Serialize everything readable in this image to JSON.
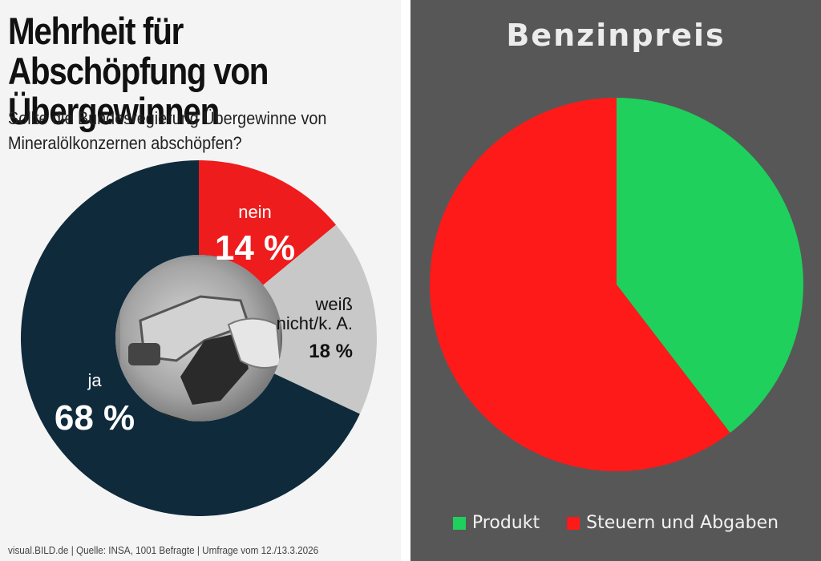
{
  "left": {
    "title": "Mehrheit für Abschöpfung von Übergewinnen",
    "subtitle": "Sollte die Bundesregierung Übergewinne von Mineralölkonzernen abschöpfen?",
    "footer": "visual.BILD.de | Quelle: INSA, 1001 Befragte | Umfrage vom 12./13.3.2026"
  },
  "right": {
    "title": "Benzinpreis"
  },
  "chart_data": [
    {
      "type": "pie",
      "variant": "donut",
      "title": "Mehrheit für Abschöpfung von Übergewinnen",
      "subtitle": "Sollte die Bundesregierung Übergewinne von Mineralölkonzernen abschöpfen?",
      "categories": [
        "nein",
        "weiß nicht/k. A.",
        "ja"
      ],
      "values": [
        14,
        18,
        68
      ],
      "labels": [
        "14 %",
        "18 %",
        "68 %"
      ],
      "colors": [
        "#ee1c1c",
        "#c8c8c8",
        "#0f2a3b"
      ],
      "center_image": "fuel-pump-nozzle"
    },
    {
      "type": "pie",
      "title": "Benzinpreis",
      "categories": [
        "Produkt",
        "Steuern und Abgaben"
      ],
      "values": [
        39.6,
        60.4
      ],
      "colors": [
        "#1fd05c",
        "#ff1a1a"
      ],
      "legend": "bottom"
    }
  ]
}
